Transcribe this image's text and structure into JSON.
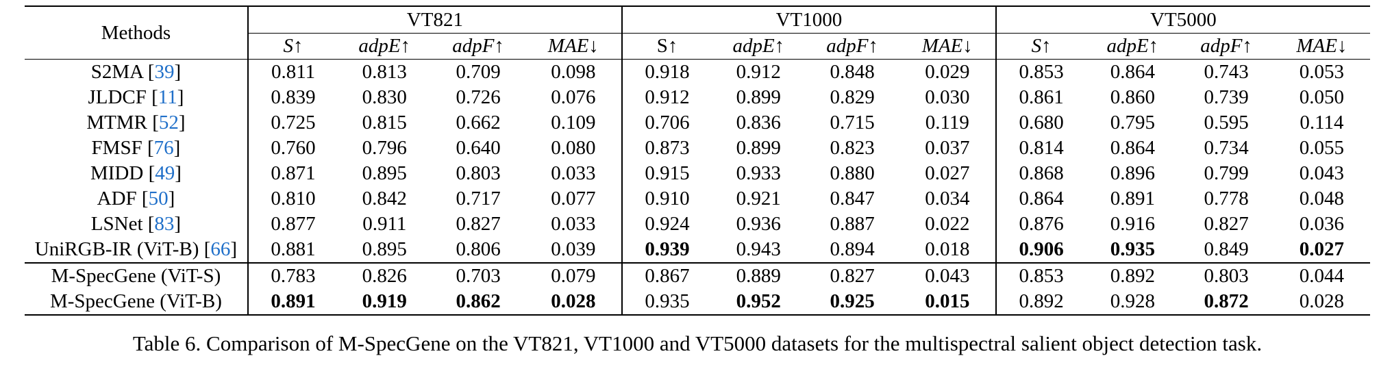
{
  "table": {
    "header": {
      "methods_label": "Methods",
      "groups": [
        "VT821",
        "VT1000",
        "VT5000"
      ],
      "metrics": [
        [
          "S↑",
          "adpE↑",
          "adpF↑",
          "MAE↓"
        ],
        [
          "S↑",
          "adpE↑",
          "adpF↑",
          "MAE↓"
        ],
        [
          "S↑",
          "adpE↑",
          "adpF↑",
          "MAE↓"
        ]
      ]
    },
    "rows": [
      {
        "name": "S2MA",
        "ref": "39",
        "vals": [
          "0.811",
          "0.813",
          "0.709",
          "0.098",
          "0.918",
          "0.912",
          "0.848",
          "0.029",
          "0.853",
          "0.864",
          "0.743",
          "0.053"
        ],
        "bold": []
      },
      {
        "name": "JLDCF",
        "ref": "11",
        "vals": [
          "0.839",
          "0.830",
          "0.726",
          "0.076",
          "0.912",
          "0.899",
          "0.829",
          "0.030",
          "0.861",
          "0.860",
          "0.739",
          "0.050"
        ],
        "bold": []
      },
      {
        "name": "MTMR",
        "ref": "52",
        "vals": [
          "0.725",
          "0.815",
          "0.662",
          "0.109",
          "0.706",
          "0.836",
          "0.715",
          "0.119",
          "0.680",
          "0.795",
          "0.595",
          "0.114"
        ],
        "bold": []
      },
      {
        "name": "FMSF",
        "ref": "76",
        "vals": [
          "0.760",
          "0.796",
          "0.640",
          "0.080",
          "0.873",
          "0.899",
          "0.823",
          "0.037",
          "0.814",
          "0.864",
          "0.734",
          "0.055"
        ],
        "bold": []
      },
      {
        "name": "MIDD",
        "ref": "49",
        "vals": [
          "0.871",
          "0.895",
          "0.803",
          "0.033",
          "0.915",
          "0.933",
          "0.880",
          "0.027",
          "0.868",
          "0.896",
          "0.799",
          "0.043"
        ],
        "bold": []
      },
      {
        "name": "ADF",
        "ref": "50",
        "vals": [
          "0.810",
          "0.842",
          "0.717",
          "0.077",
          "0.910",
          "0.921",
          "0.847",
          "0.034",
          "0.864",
          "0.891",
          "0.778",
          "0.048"
        ],
        "bold": []
      },
      {
        "name": "LSNet",
        "ref": "83",
        "vals": [
          "0.877",
          "0.911",
          "0.827",
          "0.033",
          "0.924",
          "0.936",
          "0.887",
          "0.022",
          "0.876",
          "0.916",
          "0.827",
          "0.036"
        ],
        "bold": []
      },
      {
        "name": "UniRGB-IR (ViT-B)",
        "ref": "66",
        "vals": [
          "0.881",
          "0.895",
          "0.806",
          "0.039",
          "0.939",
          "0.943",
          "0.894",
          "0.018",
          "0.906",
          "0.935",
          "0.849",
          "0.027"
        ],
        "bold": [
          4,
          8,
          9,
          11
        ]
      },
      {
        "name": "M-SpecGene (ViT-S)",
        "ref": "",
        "vals": [
          "0.783",
          "0.826",
          "0.703",
          "0.079",
          "0.867",
          "0.889",
          "0.827",
          "0.043",
          "0.853",
          "0.892",
          "0.803",
          "0.044"
        ],
        "bold": []
      },
      {
        "name": "M-SpecGene (ViT-B)",
        "ref": "",
        "vals": [
          "0.891",
          "0.919",
          "0.862",
          "0.028",
          "0.935",
          "0.952",
          "0.925",
          "0.015",
          "0.892",
          "0.928",
          "0.872",
          "0.028"
        ],
        "bold": [
          0,
          1,
          2,
          3,
          5,
          6,
          7,
          10
        ]
      }
    ]
  },
  "caption": "Table 6. Comparison of M-SpecGene on the VT821, VT1000 and VT5000 datasets for the multispectral salient object detection task."
}
